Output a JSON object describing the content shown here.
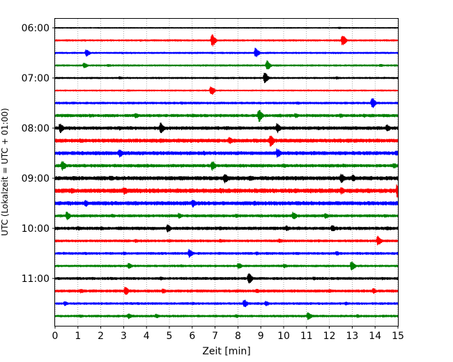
{
  "chart_data": {
    "type": "line",
    "title": "",
    "xlabel": "Zeit  [min]",
    "ylabel": "UTC (Lokalzeit = UTC + 01:00)",
    "xlim": [
      0,
      15
    ],
    "x_ticks": [
      0,
      1,
      2,
      3,
      4,
      5,
      6,
      7,
      8,
      9,
      10,
      11,
      12,
      13,
      14,
      15
    ],
    "x_tick_labels": [
      "0",
      "1",
      "2",
      "3",
      "4",
      "5",
      "6",
      "7",
      "8",
      "9",
      "10",
      "11",
      "12",
      "13",
      "14",
      "15"
    ],
    "y_ticks": [
      {
        "label": "06:00",
        "trace_index": 0
      },
      {
        "label": "07:00",
        "trace_index": 4
      },
      {
        "label": "08:00",
        "trace_index": 8
      },
      {
        "label": "09:00",
        "trace_index": 12
      },
      {
        "label": "10:00",
        "trace_index": 16
      },
      {
        "label": "11:00",
        "trace_index": 20
      }
    ],
    "grid": {
      "x": "dotted",
      "y": false
    },
    "trace_interval_minutes": 15,
    "traces": [
      {
        "start": "06:00",
        "color": "#000000",
        "noise": 0.6,
        "events": [
          [
            12.4,
            1.2
          ]
        ]
      },
      {
        "start": "06:15",
        "color": "#ff0000",
        "noise": 1.0,
        "events": [
          [
            6.85,
            9
          ],
          [
            12.55,
            8
          ],
          [
            3.7,
            1.5
          ],
          [
            10.5,
            1.2
          ]
        ]
      },
      {
        "start": "06:30",
        "color": "#0000ff",
        "noise": 1.0,
        "events": [
          [
            1.35,
            5
          ],
          [
            8.75,
            7
          ],
          [
            3.3,
            1.2
          ]
        ]
      },
      {
        "start": "06:45",
        "color": "#008000",
        "noise": 1.0,
        "events": [
          [
            9.25,
            7
          ],
          [
            1.25,
            4
          ],
          [
            2.3,
            2
          ],
          [
            14.2,
            2
          ]
        ]
      },
      {
        "start": "07:00",
        "color": "#000000",
        "noise": 1.0,
        "events": [
          [
            9.15,
            8
          ],
          [
            2.8,
            2
          ],
          [
            12.3,
            2
          ],
          [
            7.0,
            1.5
          ]
        ]
      },
      {
        "start": "07:15",
        "color": "#ff0000",
        "noise": 0.8,
        "events": [
          [
            6.8,
            7
          ],
          [
            3.2,
            1.2
          ]
        ]
      },
      {
        "start": "07:30",
        "color": "#0000ff",
        "noise": 1.3,
        "events": [
          [
            13.85,
            8
          ],
          [
            5.5,
            2
          ],
          [
            3.2,
            1.8
          ],
          [
            10.6,
            2
          ],
          [
            8.1,
            1.5
          ]
        ]
      },
      {
        "start": "07:45",
        "color": "#008000",
        "noise": 1.7,
        "events": [
          [
            8.9,
            9
          ],
          [
            3.5,
            4
          ],
          [
            10.5,
            3.5
          ],
          [
            12.45,
            3
          ],
          [
            6.0,
            2.5
          ],
          [
            1.5,
            2.5
          ],
          [
            13.5,
            2.5
          ]
        ]
      },
      {
        "start": "08:00",
        "color": "#000000",
        "noise": 1.9,
        "events": [
          [
            0.2,
            7
          ],
          [
            4.6,
            8
          ],
          [
            9.7,
            7
          ],
          [
            14.5,
            5
          ],
          [
            2.8,
            3
          ],
          [
            7.5,
            2.5
          ],
          [
            11.5,
            2.5
          ],
          [
            3.3,
            2.5
          ]
        ]
      },
      {
        "start": "08:15",
        "color": "#ff0000",
        "noise": 2.2,
        "events": [
          [
            9.4,
            9
          ],
          [
            7.6,
            5
          ],
          [
            4.6,
            3.5
          ],
          [
            1.1,
            3
          ],
          [
            12.2,
            3
          ],
          [
            5.6,
            3
          ],
          [
            14.1,
            2.5
          ],
          [
            10.3,
            2.5
          ]
        ]
      },
      {
        "start": "08:30",
        "color": "#0000ff",
        "noise": 2.2,
        "events": [
          [
            2.8,
            6
          ],
          [
            9.7,
            7
          ],
          [
            14.9,
            4
          ],
          [
            11.3,
            3
          ],
          [
            6.5,
            3
          ],
          [
            4.4,
            2.5
          ],
          [
            12.7,
            2.5
          ]
        ]
      },
      {
        "start": "08:45",
        "color": "#008000",
        "noise": 1.8,
        "events": [
          [
            0.3,
            7
          ],
          [
            6.85,
            7
          ],
          [
            14.8,
            4
          ],
          [
            10.0,
            3
          ],
          [
            4.0,
            2.5
          ],
          [
            12.6,
            2.5
          ],
          [
            2.6,
            2
          ]
        ]
      },
      {
        "start": "09:00",
        "color": "#000000",
        "noise": 2.3,
        "events": [
          [
            7.4,
            7
          ],
          [
            12.5,
            7
          ],
          [
            13.0,
            5
          ],
          [
            2.4,
            4
          ],
          [
            8.5,
            4
          ],
          [
            0.8,
            3
          ],
          [
            5.5,
            3
          ],
          [
            10.5,
            3
          ]
        ]
      },
      {
        "start": "09:15",
        "color": "#ff0000",
        "noise": 2.6,
        "events": [
          [
            14.95,
            10
          ],
          [
            3.0,
            6
          ],
          [
            12.5,
            5
          ],
          [
            0.7,
            4
          ],
          [
            7.2,
            4
          ],
          [
            10.5,
            3.5
          ],
          [
            4.3,
            3.5
          ],
          [
            5.3,
            3
          ],
          [
            9.1,
            3
          ]
        ]
      },
      {
        "start": "09:30",
        "color": "#0000ff",
        "noise": 2.3,
        "events": [
          [
            1.3,
            5
          ],
          [
            6.0,
            6
          ],
          [
            8.7,
            3.5
          ],
          [
            11.2,
            3
          ],
          [
            3.5,
            3
          ],
          [
            13.3,
            2.5
          ],
          [
            14.3,
            2.5
          ]
        ]
      },
      {
        "start": "09:45",
        "color": "#008000",
        "noise": 1.6,
        "events": [
          [
            0.5,
            6
          ],
          [
            10.4,
            6
          ],
          [
            11.8,
            4
          ],
          [
            5.4,
            4
          ],
          [
            7.9,
            3
          ],
          [
            2.5,
            2.5
          ],
          [
            14.4,
            2.5
          ]
        ]
      },
      {
        "start": "10:00",
        "color": "#000000",
        "noise": 1.8,
        "events": [
          [
            4.9,
            6
          ],
          [
            12.1,
            5
          ],
          [
            10.1,
            4
          ],
          [
            2.0,
            3
          ],
          [
            7.2,
            3
          ],
          [
            14.5,
            3
          ],
          [
            1.0,
            3
          ]
        ]
      },
      {
        "start": "10:15",
        "color": "#ff0000",
        "noise": 1.4,
        "events": [
          [
            14.1,
            7
          ],
          [
            9.8,
            3
          ],
          [
            7.2,
            2.5
          ],
          [
            3.5,
            2.5
          ],
          [
            11.5,
            2
          ],
          [
            5.0,
            2
          ]
        ]
      },
      {
        "start": "10:30",
        "color": "#0000ff",
        "noise": 1.4,
        "events": [
          [
            5.85,
            6
          ],
          [
            12.3,
            3
          ],
          [
            8.8,
            2.5
          ],
          [
            3.0,
            2.5
          ],
          [
            10.6,
            2
          ],
          [
            1.3,
            2
          ]
        ]
      },
      {
        "start": "10:45",
        "color": "#008000",
        "noise": 1.2,
        "events": [
          [
            12.95,
            7
          ],
          [
            8.0,
            4.5
          ],
          [
            3.2,
            4
          ],
          [
            10.0,
            3
          ],
          [
            5.5,
            2
          ]
        ]
      },
      {
        "start": "11:00",
        "color": "#000000",
        "noise": 1.5,
        "events": [
          [
            8.45,
            8
          ],
          [
            4.6,
            2.5
          ],
          [
            11.3,
            2.5
          ],
          [
            14.3,
            2
          ],
          [
            1.6,
            2
          ]
        ]
      },
      {
        "start": "11:15",
        "color": "#ff0000",
        "noise": 1.6,
        "events": [
          [
            3.05,
            6
          ],
          [
            13.9,
            4
          ],
          [
            4.7,
            3.5
          ],
          [
            8.8,
            3
          ],
          [
            1.1,
            3
          ],
          [
            12.0,
            2.5
          ]
        ]
      },
      {
        "start": "11:30",
        "color": "#0000ff",
        "noise": 1.3,
        "events": [
          [
            8.25,
            6
          ],
          [
            9.2,
            3.5
          ],
          [
            0.4,
            3
          ],
          [
            12.7,
            2.5
          ],
          [
            6.0,
            2
          ],
          [
            3.6,
            2
          ]
        ]
      },
      {
        "start": "11:45",
        "color": "#008000",
        "noise": 1.3,
        "events": [
          [
            11.05,
            6
          ],
          [
            3.2,
            4
          ],
          [
            4.4,
            3
          ],
          [
            7.9,
            2.5
          ],
          [
            13.2,
            2.5
          ],
          [
            1.1,
            2
          ]
        ]
      }
    ]
  }
}
